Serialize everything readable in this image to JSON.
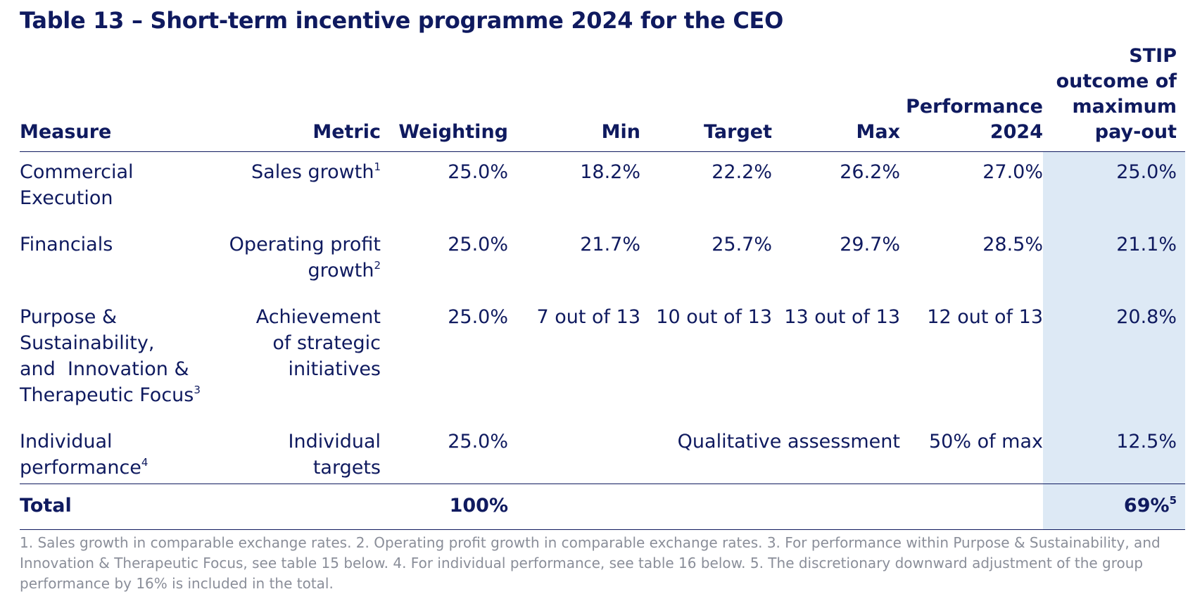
{
  "title": "Table 13 – Short-term incentive programme 2024 for the CEO",
  "headers": {
    "measure": "Measure",
    "metric": "Metric",
    "weighting": "Weighting",
    "min": "Min",
    "target": "Target",
    "max": "Max",
    "performance_1": "Performance",
    "performance_2": "2024",
    "stip_1": "STIP",
    "stip_2": "outcome of",
    "stip_3": "maximum",
    "stip_4": "pay-out"
  },
  "rows": [
    {
      "measure_lines": [
        "Commercial",
        "Execution"
      ],
      "measure_note": "",
      "metric_lines": [
        "Sales growth"
      ],
      "metric_note": "1",
      "weighting": "25.0%",
      "min": "18.2%",
      "target": "22.2%",
      "max": "26.2%",
      "performance": "27.0%",
      "outcome": "25.0%"
    },
    {
      "measure_lines": [
        "Financials"
      ],
      "measure_note": "",
      "metric_lines": [
        "Operating profit",
        "growth"
      ],
      "metric_note": "2",
      "weighting": "25.0%",
      "min": "21.7%",
      "target": "25.7%",
      "max": "29.7%",
      "performance": "28.5%",
      "outcome": "21.1%"
    },
    {
      "measure_lines": [
        "Purpose &",
        "Sustainability,",
        "and  Innovation &",
        "Therapeutic Focus"
      ],
      "measure_note": "3",
      "metric_lines": [
        "Achievement",
        "of strategic",
        "initiatives"
      ],
      "metric_note": "",
      "weighting": "25.0%",
      "min": "7 out of 13",
      "target": "10 out of 13",
      "max": "13 out of 13",
      "performance": "12 out of 13",
      "outcome": "20.8%"
    },
    {
      "measure_lines": [
        "Individual",
        "performance"
      ],
      "measure_note": "4",
      "metric_lines": [
        "Individual",
        "targets"
      ],
      "metric_note": "",
      "weighting": "25.0%",
      "qualitative": "Qualitative assessment",
      "performance": "50% of max",
      "outcome": "12.5%"
    }
  ],
  "total": {
    "label": "Total",
    "weighting": "100%",
    "outcome": "69%",
    "outcome_note": "5"
  },
  "footnote": "1. Sales growth in comparable exchange rates. 2. Operating profit growth in comparable exchange rates. 3. For performance within Purpose & Sustainability, and Innovation & Therapeutic Focus, see table 15 below. 4. For individual performance, see table 16 below. 5. The discretionary downward adjustment of the group performance by 16% is included in the total.",
  "colors": {
    "text": "#0f1a5f",
    "highlight_column": "#dde9f5",
    "footnote": "#8a8e99"
  }
}
